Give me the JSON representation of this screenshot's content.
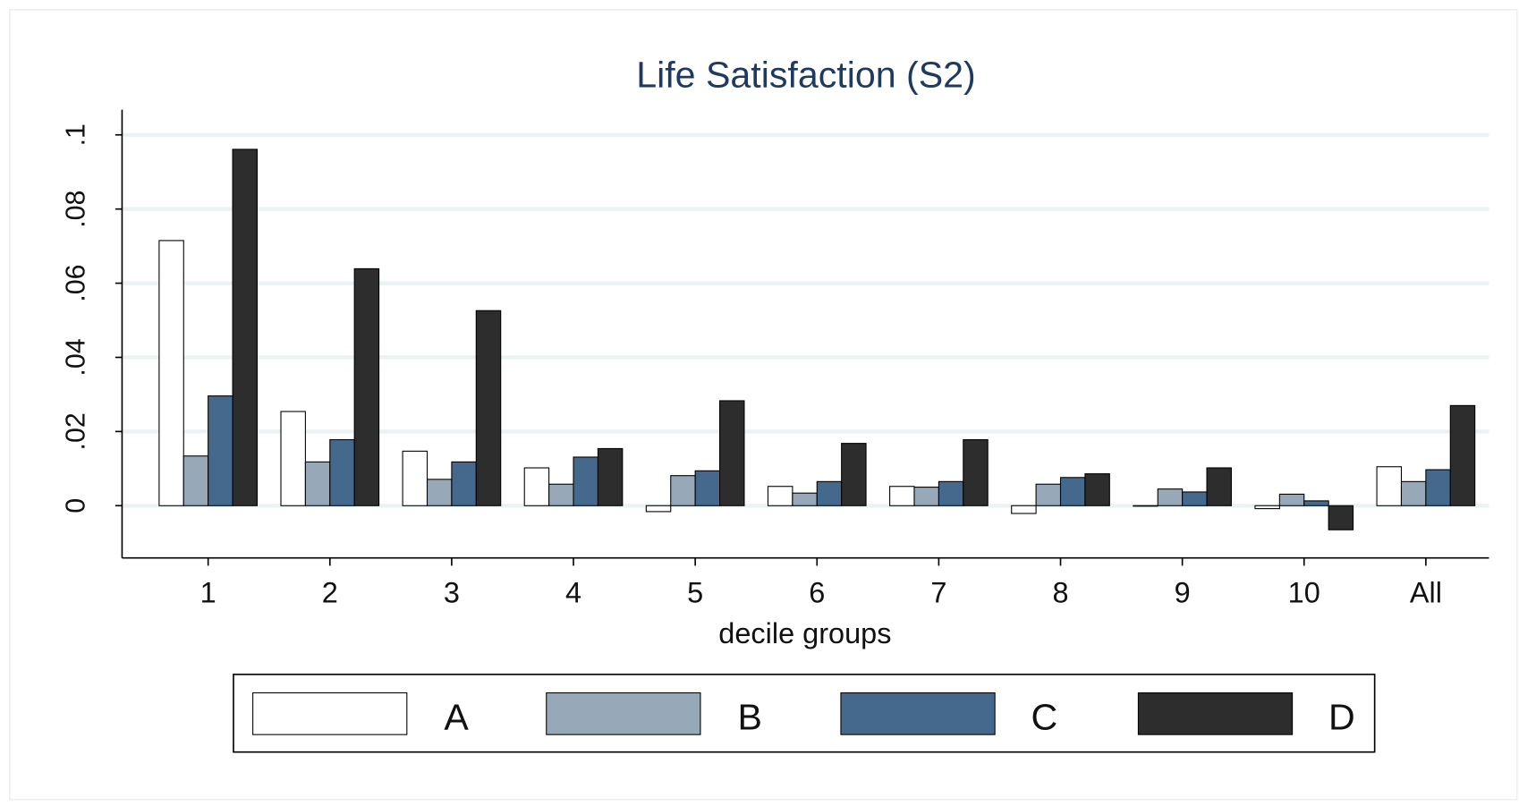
{
  "chart_data": {
    "type": "bar",
    "title": "Life Satisfaction (S2)",
    "x_label": "decile groups",
    "categories": [
      "1",
      "2",
      "3",
      "4",
      "5",
      "6",
      "7",
      "8",
      "9",
      "10",
      "All"
    ],
    "series": [
      {
        "name": "A",
        "color": "#ffffff",
        "values": [
          0.0715,
          0.0254,
          0.0147,
          0.0102,
          -0.0016,
          0.0052,
          0.0052,
          -0.0021,
          0,
          -0.0008,
          0.0105
        ]
      },
      {
        "name": "B",
        "color": "#97a9b8",
        "values": [
          0.0134,
          0.0118,
          0.0071,
          0.0058,
          0.0081,
          0.0034,
          0.005,
          0.0058,
          0.0045,
          0.0031,
          0.0065
        ]
      },
      {
        "name": "C",
        "color": "#45698c",
        "values": [
          0.0296,
          0.0178,
          0.0118,
          0.0131,
          0.0094,
          0.0065,
          0.0065,
          0.0076,
          0.0037,
          0.0013,
          0.0097
        ]
      },
      {
        "name": "D",
        "color": "#2d2d2d",
        "values": [
          0.0961,
          0.0639,
          0.0526,
          0.0154,
          0.0283,
          0.0168,
          0.0178,
          0.0086,
          0.0102,
          -0.0065,
          0.027
        ]
      }
    ],
    "ylim": [
      -0.0141,
      0.1068
    ],
    "yticks": [
      0,
      {
        "value": 0.02,
        "label": ".02"
      },
      {
        "value": 0.04,
        "label": ".04"
      },
      {
        "value": 0.06,
        "label": ".06"
      },
      {
        "value": 0.08,
        "label": ".08"
      },
      {
        "value": 0.1,
        "label": ".1"
      }
    ],
    "grid": true,
    "legend": "bottom"
  }
}
